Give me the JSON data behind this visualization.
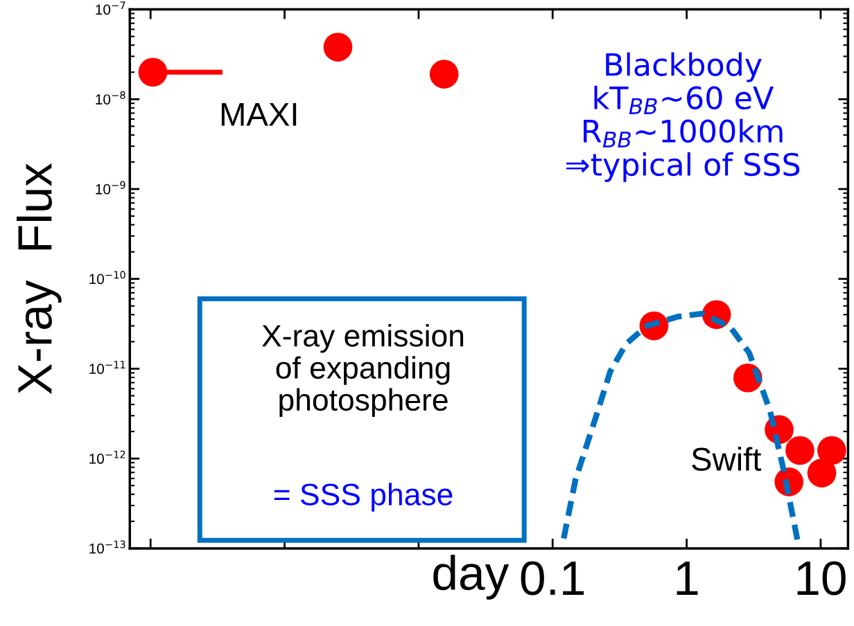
{
  "chart_data": {
    "type": "scatter",
    "xlabel": "day",
    "ylabel": "X-ray  Flux",
    "log": "xy",
    "xlim": [
      7e-05,
      16
    ],
    "ylim": [
      1e-13,
      1e-07
    ],
    "xticks": [
      {
        "value": 0.0001,
        "label": null
      },
      {
        "value": 0.001,
        "label": null
      },
      {
        "value": 0.01,
        "label": null
      },
      0.1,
      1,
      10
    ],
    "yticks": [
      {
        "value": 1e-13,
        "label": "10$^{−13}$"
      },
      {
        "value": 1e-12,
        "label": "10$^{−12}$"
      },
      {
        "value": 1e-11,
        "label": "10$^{−11}$"
      },
      {
        "value": 1e-10,
        "label": "10$^{−10}$"
      },
      {
        "value": 1e-09,
        "label": "10$^{−9}$"
      },
      {
        "value": 1e-08,
        "label": "10$^{−8}$"
      },
      {
        "value": 1e-07,
        "label": "10$^{−7}$"
      }
    ],
    "grid": false,
    "marker": "circle",
    "series": [
      {
        "name": "MAXI",
        "color": "#ff0000",
        "x": [
          0.000104,
          0.0025,
          0.0155
        ],
        "values": [
          2e-08,
          3.8e-08,
          1.9e-08
        ],
        "xerrors": [
          [
            0.000104,
            0.000344
          ],
          null,
          null
        ]
      },
      {
        "name": "Swift",
        "color": "#ff0000",
        "x": [
          0.57,
          1.67,
          2.86,
          4.9,
          7.0,
          5.8,
          10.2,
          12.1
        ],
        "values": [
          3e-11,
          4e-11,
          7.9e-12,
          2.1e-12,
          1.23e-12,
          5.5e-13,
          6.9e-13,
          1.23e-12
        ]
      },
      {
        "type": "line",
        "color": "#0070c0",
        "line_style": "dashed",
        "marker": "none",
        "x": [
          0.121,
          0.148,
          0.207,
          0.269,
          0.354,
          0.506,
          0.86,
          1.32,
          2.12,
          2.93,
          4.19,
          5.31,
          6.74
        ],
        "values": [
          1.29e-13,
          5.8e-13,
          2.7e-12,
          9.3e-12,
          1.9e-11,
          3e-11,
          3.8e-11,
          4.1e-11,
          2.9e-11,
          1.5e-11,
          3.4e-12,
          7.3e-13,
          1.2e-13
        ]
      }
    ],
    "annotations": [
      "Blackbody\nkT$_{BB}$~60 eV\nR$_{BB}$~1000km\n⇒typical of SSS",
      "X-ray emission\nof expanding\nphotosphere",
      "= SSS phase"
    ]
  }
}
